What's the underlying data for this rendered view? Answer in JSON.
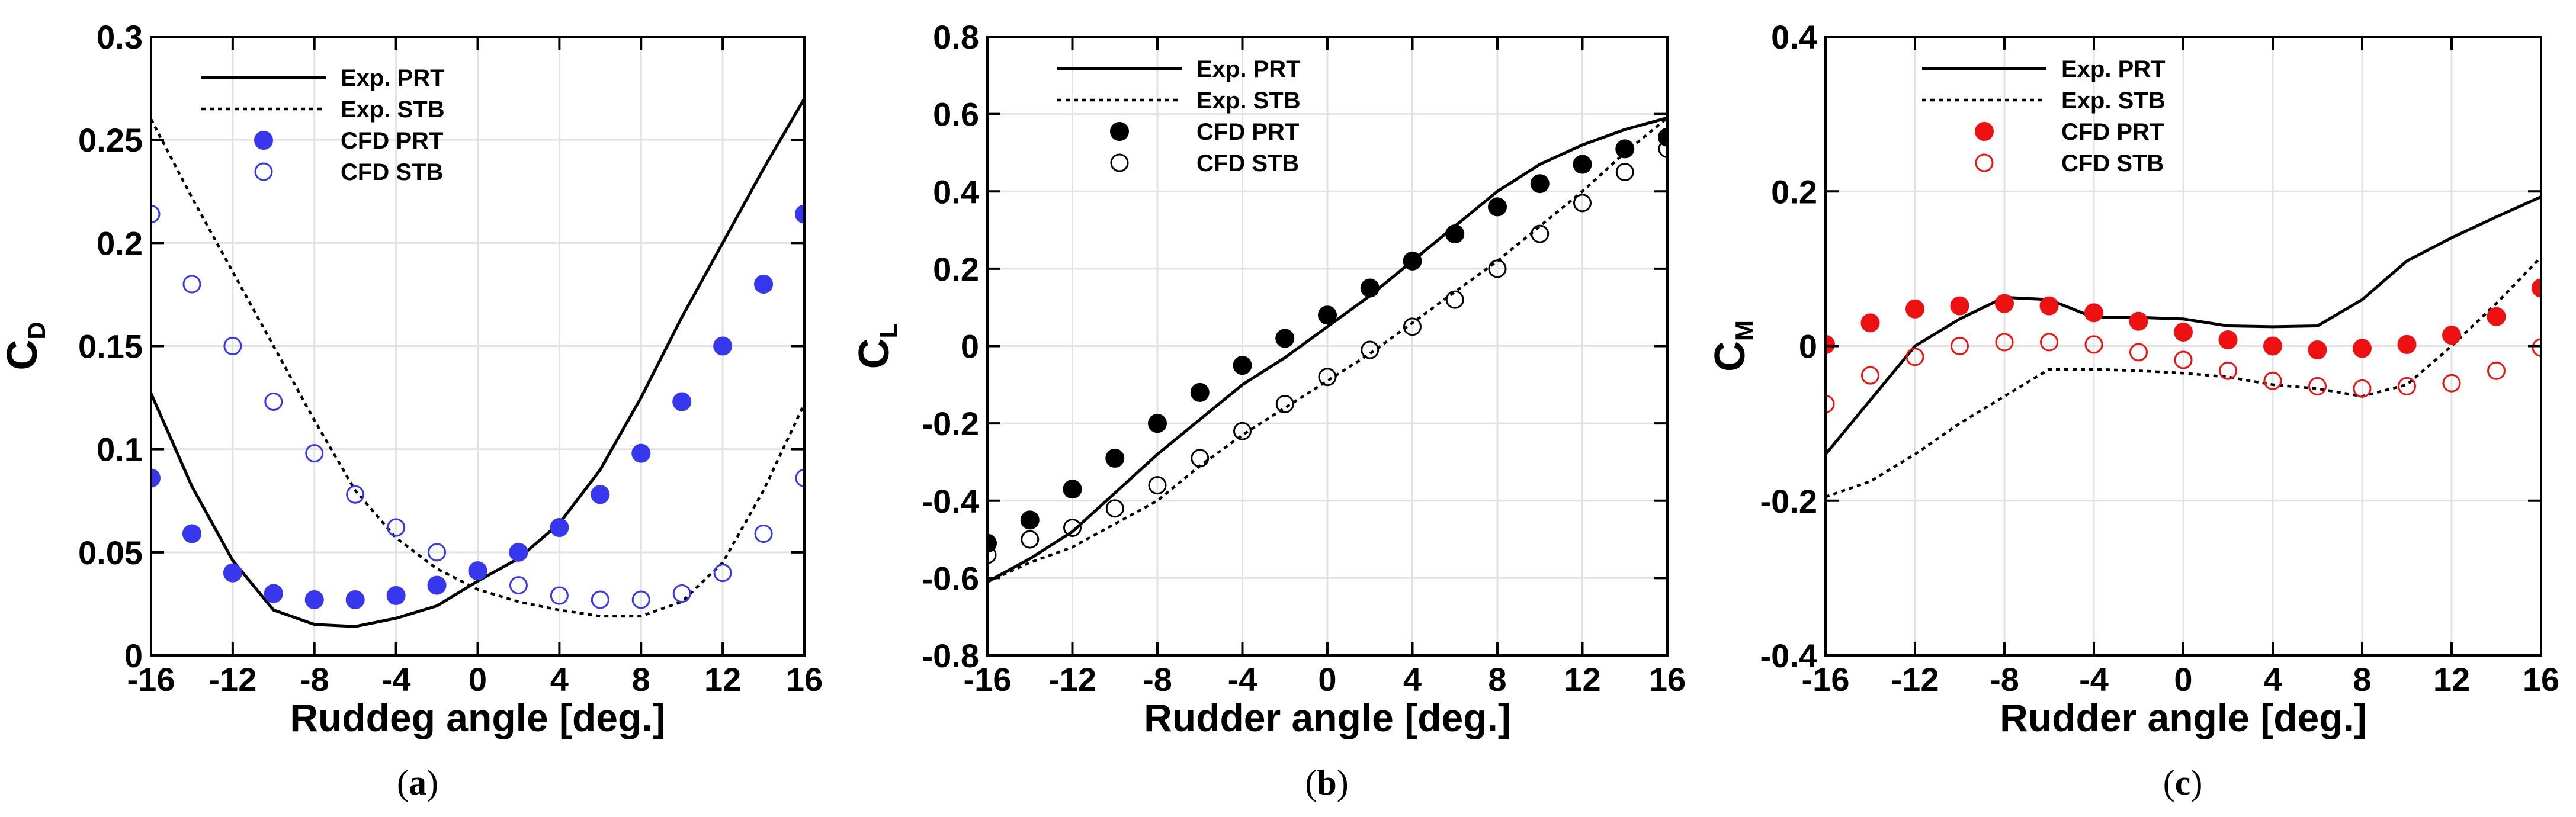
{
  "chart_data": [
    {
      "type": "line",
      "panel_label": "a",
      "caption": {
        "open": "(",
        "label": "a",
        "close": ")"
      },
      "xlabel": "Ruddeg angle [deg.]",
      "ylabel": {
        "main": "C",
        "sub": "D"
      },
      "xlim": [
        -16,
        16
      ],
      "ylim": [
        0,
        0.3
      ],
      "xticks": [
        -16,
        -12,
        -8,
        -4,
        0,
        4,
        8,
        12,
        16
      ],
      "xtick_labels": [
        "-16",
        "-12",
        "-8",
        "-4",
        "0",
        "4",
        "8",
        "12",
        "16"
      ],
      "yticks": [
        0,
        0.05,
        0.1,
        0.15,
        0.2,
        0.25,
        0.3
      ],
      "ytick_labels": [
        "0",
        "0.05",
        "0.1",
        "0.15",
        "0.2",
        "0.25",
        "0.3"
      ],
      "grid": true,
      "legend_position": "top-left",
      "series": [
        {
          "name": "Exp. PRT",
          "style": "solid-line",
          "color": "#000000",
          "x": [
            -16,
            -14,
            -12,
            -10,
            -8,
            -6,
            -4,
            -2,
            0,
            2,
            4,
            6,
            8,
            10,
            12,
            14,
            16
          ],
          "y": [
            0.127,
            0.082,
            0.046,
            0.022,
            0.015,
            0.014,
            0.018,
            0.024,
            0.036,
            0.047,
            0.064,
            0.09,
            0.125,
            0.164,
            0.2,
            0.236,
            0.27
          ]
        },
        {
          "name": "Exp. STB",
          "style": "dotted-line",
          "color": "#000000",
          "x": [
            -16,
            -14,
            -12,
            -10,
            -8,
            -6,
            -4,
            -2,
            0,
            2,
            4,
            6,
            8,
            10,
            12,
            14,
            16
          ],
          "y": [
            0.26,
            0.222,
            0.186,
            0.15,
            0.114,
            0.08,
            0.057,
            0.042,
            0.032,
            0.026,
            0.022,
            0.019,
            0.019,
            0.026,
            0.045,
            0.08,
            0.122
          ]
        },
        {
          "name": "CFD PRT",
          "style": "filled-circle",
          "color": "#3737ee",
          "x": [
            -16,
            -14,
            -12,
            -10,
            -8,
            -6,
            -4,
            -2,
            0,
            2,
            4,
            6,
            8,
            10,
            12,
            14,
            16
          ],
          "y": [
            0.086,
            0.059,
            0.04,
            0.03,
            0.027,
            0.027,
            0.029,
            0.034,
            0.041,
            0.05,
            0.062,
            0.078,
            0.098,
            0.123,
            0.15,
            0.18,
            0.214
          ]
        },
        {
          "name": "CFD STB",
          "style": "hollow-circle",
          "color": "#3737ee",
          "x": [
            -16,
            -14,
            -12,
            -10,
            -8,
            -6,
            -4,
            -2,
            0,
            2,
            4,
            6,
            8,
            10,
            12,
            14,
            16
          ],
          "y": [
            0.214,
            0.18,
            0.15,
            0.123,
            0.098,
            0.078,
            0.062,
            0.05,
            0.041,
            0.034,
            0.029,
            0.027,
            0.027,
            0.03,
            0.04,
            0.059,
            0.086
          ]
        }
      ]
    },
    {
      "type": "line",
      "panel_label": "b",
      "caption": {
        "open": "(",
        "label": "b",
        "close": ")"
      },
      "xlabel": "Rudder angle [deg.]",
      "ylabel": {
        "main": "C",
        "sub": "L"
      },
      "xlim": [
        -16,
        16
      ],
      "ylim": [
        -0.8,
        0.8
      ],
      "xticks": [
        -16,
        -12,
        -8,
        -4,
        0,
        4,
        8,
        12,
        16
      ],
      "xtick_labels": [
        "-16",
        "-12",
        "-8",
        "-4",
        "0",
        "4",
        "8",
        "12",
        "16"
      ],
      "yticks": [
        -0.8,
        -0.6,
        -0.4,
        -0.2,
        0,
        0.2,
        0.4,
        0.6,
        0.8
      ],
      "ytick_labels": [
        "-0.8",
        "-0.6",
        "-0.4",
        "-0.2",
        "0",
        "0.2",
        "0.4",
        "0.6",
        "0.8"
      ],
      "grid": true,
      "legend_position": "top-left",
      "series": [
        {
          "name": "Exp. PRT",
          "style": "solid-line",
          "color": "#000000",
          "x": [
            -16,
            -14,
            -12,
            -10,
            -8,
            -6,
            -4,
            -2,
            0,
            2,
            4,
            6,
            8,
            10,
            12,
            14,
            16
          ],
          "y": [
            -0.61,
            -0.55,
            -0.48,
            -0.38,
            -0.28,
            -0.19,
            -0.1,
            -0.03,
            0.05,
            0.13,
            0.22,
            0.31,
            0.4,
            0.47,
            0.52,
            0.56,
            0.59
          ]
        },
        {
          "name": "Exp. STB",
          "style": "dotted-line",
          "color": "#000000",
          "x": [
            -16,
            -14,
            -12,
            -10,
            -8,
            -6,
            -4,
            -2,
            0,
            2,
            4,
            6,
            8,
            10,
            12,
            14,
            16
          ],
          "y": [
            -0.61,
            -0.56,
            -0.52,
            -0.46,
            -0.4,
            -0.31,
            -0.23,
            -0.16,
            -0.09,
            -0.02,
            0.06,
            0.14,
            0.22,
            0.31,
            0.4,
            0.5,
            0.59
          ]
        },
        {
          "name": "CFD PRT",
          "style": "filled-circle",
          "color": "#000000",
          "x": [
            -16,
            -14,
            -12,
            -10,
            -8,
            -6,
            -4,
            -2,
            0,
            2,
            4,
            6,
            8,
            10,
            12,
            14,
            16
          ],
          "y": [
            -0.51,
            -0.45,
            -0.37,
            -0.29,
            -0.2,
            -0.12,
            -0.05,
            0.02,
            0.08,
            0.15,
            0.22,
            0.29,
            0.36,
            0.42,
            0.47,
            0.51,
            0.54
          ]
        },
        {
          "name": "CFD STB",
          "style": "hollow-circle",
          "color": "#000000",
          "x": [
            -16,
            -14,
            -12,
            -10,
            -8,
            -6,
            -4,
            -2,
            0,
            2,
            4,
            6,
            8,
            10,
            12,
            14,
            16
          ],
          "y": [
            -0.54,
            -0.5,
            -0.47,
            -0.42,
            -0.36,
            -0.29,
            -0.22,
            -0.15,
            -0.08,
            -0.01,
            0.05,
            0.12,
            0.2,
            0.29,
            0.37,
            0.45,
            0.51
          ]
        }
      ]
    },
    {
      "type": "line",
      "panel_label": "c",
      "caption": {
        "open": "(",
        "label": "c",
        "close": ")"
      },
      "xlabel": "Rudder angle [deg.]",
      "ylabel": {
        "main": "C",
        "sub": "M"
      },
      "xlim": [
        -16,
        16
      ],
      "ylim": [
        -0.4,
        0.4
      ],
      "xticks": [
        -16,
        -12,
        -8,
        -4,
        0,
        4,
        8,
        12,
        16
      ],
      "xtick_labels": [
        "-16",
        "-12",
        "-8",
        "-4",
        "0",
        "4",
        "8",
        "12",
        "16"
      ],
      "yticks": [
        -0.4,
        -0.2,
        0,
        0.2,
        0.4
      ],
      "ytick_labels": [
        "-0.4",
        "-0.2",
        "0",
        "0.2",
        "0.4"
      ],
      "grid": true,
      "legend_position": "top-left",
      "series": [
        {
          "name": "Exp. PRT",
          "style": "solid-line",
          "color": "#000000",
          "x": [
            -16,
            -14,
            -12,
            -10,
            -8,
            -6,
            -4,
            -2,
            0,
            2,
            4,
            6,
            8,
            10,
            12,
            14,
            16
          ],
          "y": [
            -0.14,
            -0.07,
            0.0,
            0.035,
            0.063,
            0.06,
            0.037,
            0.037,
            0.035,
            0.026,
            0.025,
            0.026,
            0.06,
            0.11,
            0.14,
            0.167,
            0.193
          ]
        },
        {
          "name": "Exp. STB",
          "style": "dotted-line",
          "color": "#000000",
          "x": [
            -16,
            -14,
            -12,
            -10,
            -8,
            -6,
            -4,
            -2,
            0,
            2,
            4,
            6,
            8,
            10,
            12,
            14,
            16
          ],
          "y": [
            -0.195,
            -0.175,
            -0.14,
            -0.1,
            -0.065,
            -0.03,
            -0.03,
            -0.032,
            -0.035,
            -0.04,
            -0.05,
            -0.055,
            -0.065,
            -0.05,
            0.0,
            0.055,
            0.115
          ]
        },
        {
          "name": "CFD PRT",
          "style": "filled-circle",
          "color": "#ee1111",
          "x": [
            -16,
            -14,
            -12,
            -10,
            -8,
            -6,
            -4,
            -2,
            0,
            2,
            4,
            6,
            8,
            10,
            12,
            14,
            16
          ],
          "y": [
            0.002,
            0.03,
            0.048,
            0.052,
            0.055,
            0.052,
            0.043,
            0.032,
            0.018,
            0.008,
            0.0,
            -0.005,
            -0.003,
            0.002,
            0.014,
            0.038,
            0.075
          ]
        },
        {
          "name": "CFD STB",
          "style": "hollow-circle",
          "color": "#ee1111",
          "x": [
            -16,
            -14,
            -12,
            -10,
            -8,
            -6,
            -4,
            -2,
            0,
            2,
            4,
            6,
            8,
            10,
            12,
            14,
            16
          ],
          "y": [
            -0.075,
            -0.038,
            -0.014,
            0.0,
            0.005,
            0.005,
            0.002,
            -0.008,
            -0.018,
            -0.032,
            -0.045,
            -0.052,
            -0.055,
            -0.052,
            -0.048,
            -0.032,
            -0.002
          ]
        }
      ]
    }
  ]
}
